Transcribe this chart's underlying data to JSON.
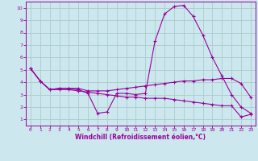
{
  "background_color": "#cce8ee",
  "grid_color": "#aacccc",
  "line_color": "#990099",
  "xlabel": "Windchill (Refroidissement éolien,°C)",
  "xlim": [
    -0.5,
    23.5
  ],
  "ylim": [
    0.5,
    10.5
  ],
  "xticks": [
    0,
    1,
    2,
    3,
    4,
    5,
    6,
    7,
    8,
    9,
    10,
    11,
    12,
    13,
    14,
    15,
    16,
    17,
    18,
    19,
    20,
    21,
    22,
    23
  ],
  "yticks": [
    1,
    2,
    3,
    4,
    5,
    6,
    7,
    8,
    9,
    10
  ],
  "line1_x": [
    0,
    1,
    2,
    3,
    4,
    5,
    6,
    7,
    8,
    9,
    10,
    11,
    12,
    13,
    14,
    15,
    16,
    17,
    18,
    19,
    20,
    21,
    22,
    23
  ],
  "line1_y": [
    5.1,
    4.1,
    3.4,
    3.5,
    3.5,
    3.4,
    3.1,
    1.5,
    1.6,
    3.1,
    3.1,
    3.0,
    3.1,
    7.3,
    9.5,
    10.1,
    10.2,
    9.3,
    7.8,
    6.0,
    4.5,
    3.0,
    2.0,
    1.5
  ],
  "line2_x": [
    0,
    1,
    2,
    3,
    4,
    5,
    6,
    7,
    8,
    9,
    10,
    11,
    12,
    13,
    14,
    15,
    16,
    17,
    18,
    19,
    20,
    21,
    22,
    23
  ],
  "line2_y": [
    5.1,
    4.1,
    3.4,
    3.5,
    3.5,
    3.5,
    3.3,
    3.3,
    3.3,
    3.4,
    3.5,
    3.6,
    3.7,
    3.8,
    3.9,
    4.0,
    4.1,
    4.1,
    4.2,
    4.2,
    4.3,
    4.3,
    3.9,
    2.8
  ],
  "line3_x": [
    0,
    1,
    2,
    3,
    4,
    5,
    6,
    7,
    8,
    9,
    10,
    11,
    12,
    13,
    14,
    15,
    16,
    17,
    18,
    19,
    20,
    21,
    22,
    23
  ],
  "line3_y": [
    5.1,
    4.1,
    3.4,
    3.4,
    3.4,
    3.3,
    3.2,
    3.1,
    3.0,
    2.9,
    2.8,
    2.8,
    2.7,
    2.7,
    2.7,
    2.6,
    2.5,
    2.4,
    2.3,
    2.2,
    2.1,
    2.1,
    1.2,
    1.4
  ],
  "xlabel_fontsize": 5.5,
  "tick_fontsize": 4.5,
  "marker_size": 3,
  "line_width": 0.8
}
